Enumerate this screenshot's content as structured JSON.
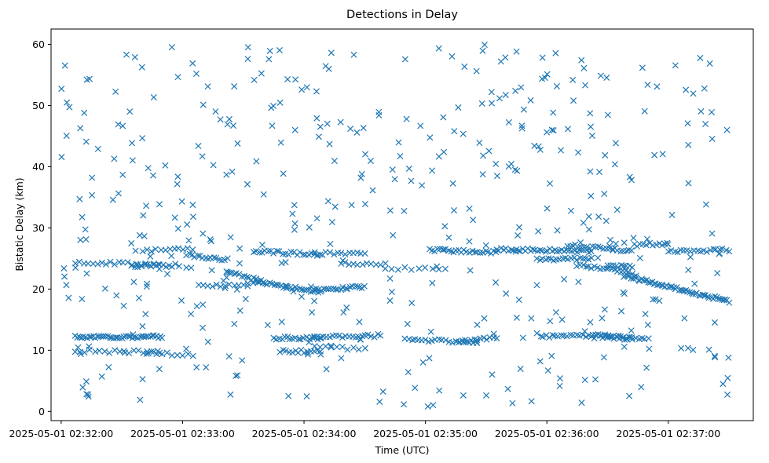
{
  "chart_data": {
    "type": "scatter",
    "title": "Detections in Delay",
    "xlabel": "Time (UTC)",
    "ylabel": "Bistatic Delay (km)",
    "x_unit": "seconds after 2025-05-01 02:32:00",
    "xlim": [
      -5,
      342
    ],
    "ylim": [
      -1.5,
      62.5
    ],
    "x_ticks": [
      {
        "value": 0,
        "label": "2025-05-01 02:32:00"
      },
      {
        "value": 60,
        "label": "2025-05-01 02:33:00"
      },
      {
        "value": 120,
        "label": "2025-05-01 02:34:00"
      },
      {
        "value": 180,
        "label": "2025-05-01 02:35:00"
      },
      {
        "value": 240,
        "label": "2025-05-01 02:36:00"
      },
      {
        "value": 300,
        "label": "2025-05-01 02:37:00"
      }
    ],
    "y_ticks": [
      0,
      10,
      20,
      30,
      40,
      50,
      60
    ],
    "grid": false,
    "marker": "x",
    "color": "#1f77b4",
    "tracks": [
      {
        "t0": 7,
        "t1": 50,
        "y0": 12.2,
        "y1": 12.2,
        "n": 44
      },
      {
        "t0": 7,
        "t1": 48,
        "y0": 24.4,
        "y1": 24.0,
        "n": 20
      },
      {
        "t0": 7,
        "t1": 48,
        "y0": 9.9,
        "y1": 9.7,
        "n": 18
      },
      {
        "t0": 35,
        "t1": 58,
        "y0": 23.8,
        "y1": 23.9,
        "n": 16
      },
      {
        "t0": 40,
        "t1": 65,
        "y0": 26.2,
        "y1": 26.5,
        "n": 12
      },
      {
        "t0": 42,
        "t1": 65,
        "y0": 9.6,
        "y1": 9.2,
        "n": 10
      },
      {
        "t0": 62,
        "t1": 82,
        "y0": 25.6,
        "y1": 24.8,
        "n": 16
      },
      {
        "t0": 68,
        "t1": 92,
        "y0": 20.5,
        "y1": 20.7,
        "n": 12
      },
      {
        "t0": 82,
        "t1": 100,
        "y0": 22.8,
        "y1": 21.2,
        "n": 16
      },
      {
        "t0": 95,
        "t1": 128,
        "y0": 21.2,
        "y1": 19.5,
        "n": 30
      },
      {
        "t0": 95,
        "t1": 128,
        "y0": 26.2,
        "y1": 25.6,
        "n": 24
      },
      {
        "t0": 105,
        "t1": 128,
        "y0": 12.0,
        "y1": 12.0,
        "n": 18
      },
      {
        "t0": 108,
        "t1": 128,
        "y0": 9.8,
        "y1": 9.8,
        "n": 14
      },
      {
        "t0": 125,
        "t1": 158,
        "y0": 12.2,
        "y1": 12.4,
        "n": 22
      },
      {
        "t0": 125,
        "t1": 150,
        "y0": 25.8,
        "y1": 25.8,
        "n": 14
      },
      {
        "t0": 125,
        "t1": 150,
        "y0": 19.8,
        "y1": 20.4,
        "n": 22
      },
      {
        "t0": 125,
        "t1": 150,
        "y0": 10.5,
        "y1": 10.2,
        "n": 10
      },
      {
        "t0": 140,
        "t1": 160,
        "y0": 24.2,
        "y1": 24.2,
        "n": 10
      },
      {
        "t0": 160,
        "t1": 190,
        "y0": 23.4,
        "y1": 23.2,
        "n": 10
      },
      {
        "t0": 170,
        "t1": 205,
        "y0": 11.8,
        "y1": 11.3,
        "n": 22
      },
      {
        "t0": 182,
        "t1": 215,
        "y0": 26.4,
        "y1": 26.0,
        "n": 26
      },
      {
        "t0": 195,
        "t1": 215,
        "y0": 11.4,
        "y1": 12.0,
        "n": 14
      },
      {
        "t0": 215,
        "t1": 262,
        "y0": 26.5,
        "y1": 26.2,
        "n": 40
      },
      {
        "t0": 235,
        "t1": 262,
        "y0": 24.8,
        "y1": 25.0,
        "n": 20
      },
      {
        "t0": 238,
        "t1": 270,
        "y0": 12.3,
        "y1": 12.4,
        "n": 22
      },
      {
        "t0": 250,
        "t1": 282,
        "y0": 27.2,
        "y1": 26.2,
        "n": 24
      },
      {
        "t0": 255,
        "t1": 282,
        "y0": 24.0,
        "y1": 22.6,
        "n": 20
      },
      {
        "t0": 262,
        "t1": 282,
        "y0": 12.2,
        "y1": 12.2,
        "n": 16
      },
      {
        "t0": 270,
        "t1": 282,
        "y0": 23.7,
        "y1": 23.7,
        "n": 10
      },
      {
        "t0": 278,
        "t1": 330,
        "y0": 22.2,
        "y1": 18.0,
        "n": 60
      },
      {
        "t0": 270,
        "t1": 290,
        "y0": 12.0,
        "y1": 12.0,
        "n": 14
      },
      {
        "t0": 283,
        "t1": 300,
        "y0": 27.2,
        "y1": 27.4,
        "n": 12
      },
      {
        "t0": 300,
        "t1": 330,
        "y0": 26.2,
        "y1": 26.4,
        "n": 20
      }
    ],
    "noise": {
      "count": 460,
      "x_range": [
        0,
        330
      ],
      "y_range": [
        0.5,
        60
      ],
      "seed": 17
    }
  }
}
